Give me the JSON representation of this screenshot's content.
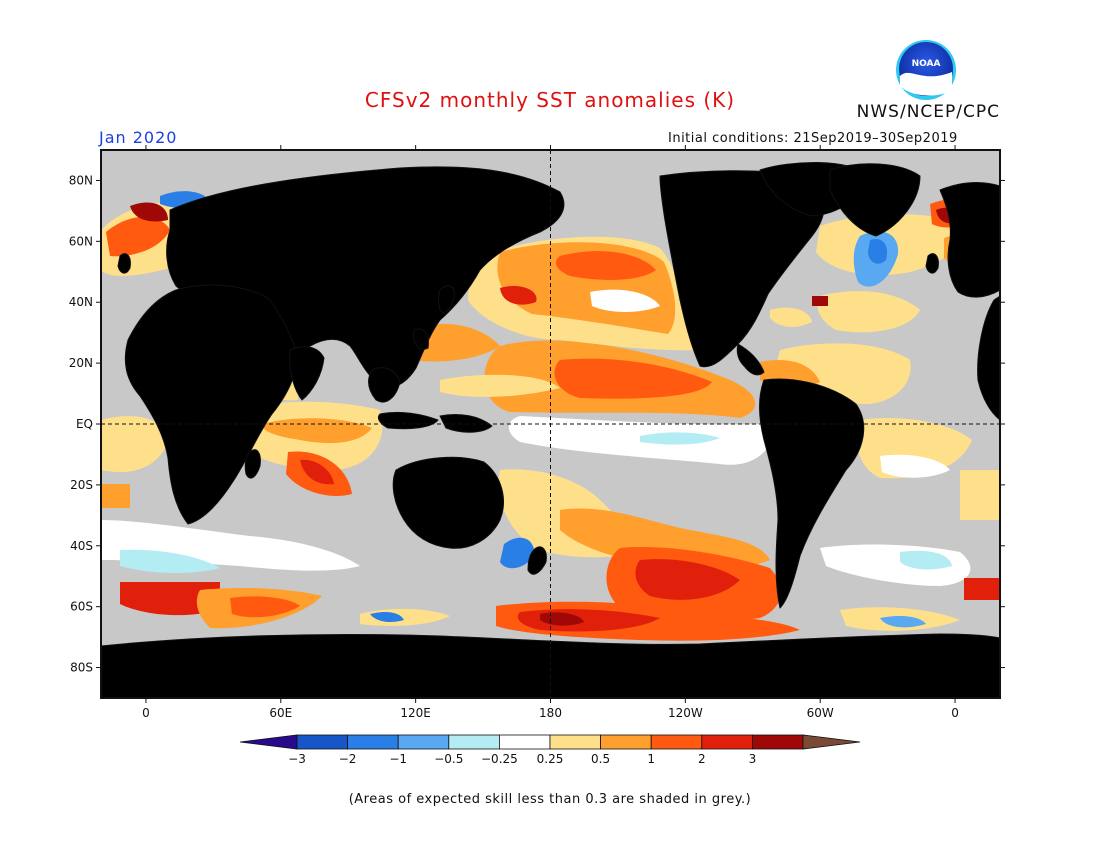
{
  "header": {
    "title": "CFSv2 monthly SST anomalies (K)",
    "organization": "NWS/NCEP/CPC",
    "logo_text": "NOAA",
    "target_month": "Jan 2020",
    "initial_conditions": "Initial conditions: 21Sep2019–30Sep2019"
  },
  "map": {
    "projection": "equirectangular",
    "lon_range": [
      -20,
      380
    ],
    "lat_range": [
      -90,
      90
    ],
    "dashed_reference_lines": [
      "EQ",
      "180"
    ],
    "y_axis_labels": [
      {
        "lat": 80,
        "label": "80N"
      },
      {
        "lat": 60,
        "label": "60N"
      },
      {
        "lat": 40,
        "label": "40N"
      },
      {
        "lat": 20,
        "label": "20N"
      },
      {
        "lat": 0,
        "label": "EQ"
      },
      {
        "lat": -20,
        "label": "20S"
      },
      {
        "lat": -40,
        "label": "40S"
      },
      {
        "lat": -60,
        "label": "60S"
      },
      {
        "lat": -80,
        "label": "80S"
      }
    ],
    "x_axis_labels": [
      {
        "lon": 0,
        "label": "0"
      },
      {
        "lon": 60,
        "label": "60E"
      },
      {
        "lon": 120,
        "label": "120E"
      },
      {
        "lon": 180,
        "label": "180"
      },
      {
        "lon": 240,
        "label": "120W"
      },
      {
        "lon": 300,
        "label": "60W"
      },
      {
        "lon": 360,
        "label": "0"
      }
    ],
    "low_skill_color": "#c8c8c8"
  },
  "colorbar": {
    "colors": [
      "#2a0a8c",
      "#1656c8",
      "#2a7fe6",
      "#58a8f2",
      "#b4ecf4",
      "#ffffff",
      "#ffe08a",
      "#ff9f2e",
      "#ff5a10",
      "#e0200a",
      "#a00808",
      "#7a4a36"
    ],
    "labels": [
      "−3",
      "−2",
      "−1",
      "−0.5",
      "−0.25",
      "0.25",
      "0.5",
      "1",
      "2",
      "3"
    ]
  },
  "footnote": "(Areas of expected skill less than 0.3 are shaded in grey.)"
}
